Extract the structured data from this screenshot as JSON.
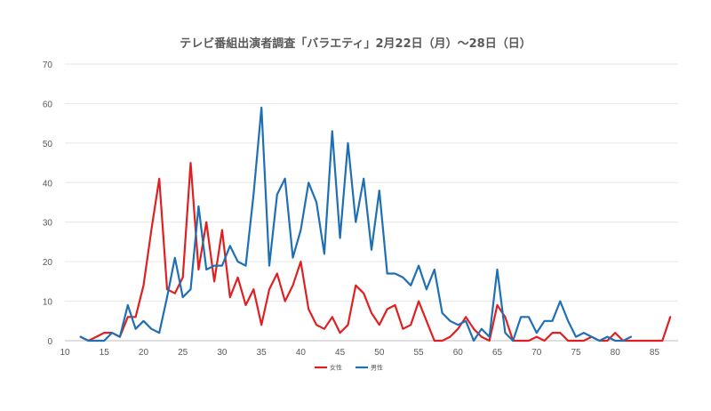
{
  "chart_data": {
    "type": "line",
    "title": "テレビ番組出演者調査「バラエティ」2月22日（月）～28日（日）",
    "xlabel": "",
    "ylabel": "",
    "xlim": [
      10,
      88
    ],
    "ylim": [
      0,
      70
    ],
    "x_ticks": [
      10,
      15,
      20,
      25,
      30,
      35,
      40,
      45,
      50,
      55,
      60,
      65,
      70,
      75,
      80,
      85
    ],
    "y_ticks": [
      0,
      10,
      20,
      30,
      40,
      50,
      60,
      70
    ],
    "grid": "horizontal",
    "legend_position": "bottom",
    "series": [
      {
        "name": "女性",
        "color": "#e02020",
        "points": [
          [
            12,
            1
          ],
          [
            13,
            0
          ],
          [
            14,
            1
          ],
          [
            15,
            2
          ],
          [
            16,
            2
          ],
          [
            17,
            1
          ],
          [
            18,
            6
          ],
          [
            19,
            6
          ],
          [
            20,
            14
          ],
          [
            21,
            28
          ],
          [
            22,
            41
          ],
          [
            23,
            13
          ],
          [
            24,
            12
          ],
          [
            25,
            16
          ],
          [
            26,
            45
          ],
          [
            27,
            18
          ],
          [
            28,
            30
          ],
          [
            29,
            15
          ],
          [
            30,
            28
          ],
          [
            31,
            11
          ],
          [
            32,
            16
          ],
          [
            33,
            9
          ],
          [
            34,
            13
          ],
          [
            35,
            4
          ],
          [
            36,
            13
          ],
          [
            37,
            17
          ],
          [
            38,
            10
          ],
          [
            39,
            14
          ],
          [
            40,
            20
          ],
          [
            41,
            8
          ],
          [
            42,
            4
          ],
          [
            43,
            3
          ],
          [
            44,
            6
          ],
          [
            45,
            2
          ],
          [
            46,
            4
          ],
          [
            47,
            14
          ],
          [
            48,
            12
          ],
          [
            49,
            7
          ],
          [
            50,
            4
          ],
          [
            51,
            8
          ],
          [
            52,
            9
          ],
          [
            53,
            3
          ],
          [
            54,
            4
          ],
          [
            55,
            10
          ],
          [
            56,
            5
          ],
          [
            57,
            0
          ],
          [
            58,
            0
          ],
          [
            59,
            1
          ],
          [
            60,
            3
          ],
          [
            61,
            6
          ],
          [
            62,
            3
          ],
          [
            63,
            1
          ],
          [
            64,
            0
          ],
          [
            65,
            9
          ],
          [
            66,
            6
          ],
          [
            67,
            0
          ],
          [
            68,
            0
          ],
          [
            69,
            0
          ],
          [
            70,
            1
          ],
          [
            71,
            0
          ],
          [
            72,
            2
          ],
          [
            73,
            2
          ],
          [
            74,
            0
          ],
          [
            75,
            0
          ],
          [
            76,
            0
          ],
          [
            77,
            1
          ],
          [
            78,
            0
          ],
          [
            79,
            0
          ],
          [
            80,
            2
          ],
          [
            81,
            0
          ],
          [
            82,
            0
          ],
          [
            83,
            0
          ],
          [
            84,
            0
          ],
          [
            85,
            0
          ],
          [
            86,
            0
          ],
          [
            87,
            6
          ]
        ]
      },
      {
        "name": "男性",
        "color": "#1f6fb5",
        "points": [
          [
            12,
            1
          ],
          [
            13,
            0
          ],
          [
            14,
            0
          ],
          [
            15,
            0
          ],
          [
            16,
            2
          ],
          [
            17,
            1
          ],
          [
            18,
            9
          ],
          [
            19,
            3
          ],
          [
            20,
            5
          ],
          [
            21,
            3
          ],
          [
            22,
            2
          ],
          [
            23,
            11
          ],
          [
            24,
            21
          ],
          [
            25,
            11
          ],
          [
            26,
            13
          ],
          [
            27,
            34
          ],
          [
            28,
            18
          ],
          [
            29,
            19
          ],
          [
            30,
            19
          ],
          [
            31,
            24
          ],
          [
            32,
            20
          ],
          [
            33,
            19
          ],
          [
            34,
            37
          ],
          [
            35,
            59
          ],
          [
            36,
            19
          ],
          [
            37,
            37
          ],
          [
            38,
            41
          ],
          [
            39,
            21
          ],
          [
            40,
            28
          ],
          [
            41,
            40
          ],
          [
            42,
            35
          ],
          [
            43,
            22
          ],
          [
            44,
            53
          ],
          [
            45,
            26
          ],
          [
            46,
            50
          ],
          [
            47,
            30
          ],
          [
            48,
            41
          ],
          [
            49,
            23
          ],
          [
            50,
            38
          ],
          [
            51,
            17
          ],
          [
            52,
            17
          ],
          [
            53,
            16
          ],
          [
            54,
            14
          ],
          [
            55,
            19
          ],
          [
            56,
            13
          ],
          [
            57,
            18
          ],
          [
            58,
            7
          ],
          [
            59,
            5
          ],
          [
            60,
            4
          ],
          [
            61,
            5
          ],
          [
            62,
            0
          ],
          [
            63,
            3
          ],
          [
            64,
            1
          ],
          [
            65,
            18
          ],
          [
            66,
            2
          ],
          [
            67,
            0
          ],
          [
            68,
            6
          ],
          [
            69,
            6
          ],
          [
            70,
            2
          ],
          [
            71,
            5
          ],
          [
            72,
            5
          ],
          [
            73,
            10
          ],
          [
            74,
            5
          ],
          [
            75,
            1
          ],
          [
            76,
            2
          ],
          [
            77,
            1
          ],
          [
            78,
            0
          ],
          [
            79,
            1
          ],
          [
            80,
            0
          ],
          [
            81,
            0
          ],
          [
            82,
            1
          ]
        ]
      }
    ]
  }
}
